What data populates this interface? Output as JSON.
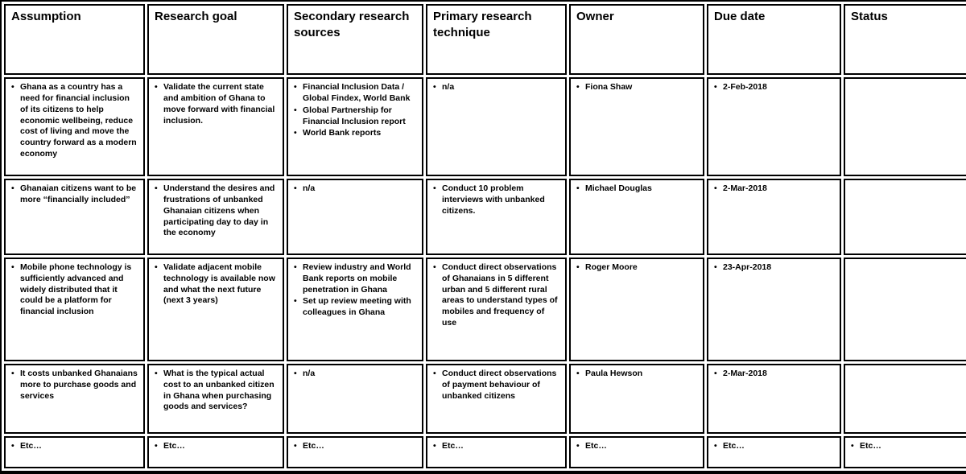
{
  "colors": {
    "border": "#000000",
    "text": "#000000",
    "background": "#ffffff"
  },
  "table": {
    "bullet_char": "•",
    "columns": [
      "Assumption",
      "Research goal",
      "Secondary research sources",
      "Primary research technique",
      "Owner",
      "Due date",
      "Status"
    ],
    "column_keys": [
      "assumption",
      "research-goal",
      "secondary-research-sources",
      "primary-research-technique",
      "owner",
      "due-date",
      "status"
    ],
    "body": [
      [
        [
          "Ghana as a country has a need for financial inclusion of its citizens to help economic wellbeing, reduce cost of living and move the country forward as a modern economy"
        ],
        [
          "Validate the current state and ambition of Ghana to move forward with financial inclusion."
        ],
        [
          "Financial Inclusion Data / Global Findex, World Bank",
          "Global Partnership for Financial Inclusion report",
          "World Bank reports"
        ],
        [
          "n/a"
        ],
        [
          "Fiona Shaw"
        ],
        [
          "2-Feb-2018"
        ],
        []
      ],
      [
        [
          "Ghanaian citizens want to be more “financially included”"
        ],
        [
          "Understand the desires and frustrations of unbanked Ghanaian citizens when participating day to day in the economy"
        ],
        [
          "n/a"
        ],
        [
          "Conduct 10 problem interviews with unbanked citizens."
        ],
        [
          "Michael Douglas"
        ],
        [
          "2-Mar-2018"
        ],
        []
      ],
      [
        [
          "Mobile phone technology is sufficiently advanced and widely distributed that it could be a platform for financial inclusion"
        ],
        [
          "Validate adjacent mobile technology is available now and what the next future (next 3 years)"
        ],
        [
          "Review industry and World Bank reports on mobile penetration in Ghana",
          "Set up review meeting with colleagues in Ghana"
        ],
        [
          "Conduct direct observations of Ghanaians in 5 different urban and 5 different rural areas to understand types of mobiles and frequency of use"
        ],
        [
          "Roger Moore"
        ],
        [
          "23-Apr-2018"
        ],
        []
      ],
      [
        [
          "It costs unbanked Ghanaians more to purchase goods and services"
        ],
        [
          "What is the typical actual cost to an unbanked citizen in Ghana when purchasing goods and services?"
        ],
        [
          "n/a"
        ],
        [
          "Conduct direct observations of payment behaviour of unbanked citizens"
        ],
        [
          "Paula Hewson"
        ],
        [
          "2-Mar-2018"
        ],
        []
      ],
      [
        [
          "Etc…"
        ],
        [
          "Etc…"
        ],
        [
          "Etc…"
        ],
        [
          "Etc…"
        ],
        [
          "Etc…"
        ],
        [
          "Etc…"
        ],
        [
          "Etc…"
        ]
      ]
    ]
  }
}
